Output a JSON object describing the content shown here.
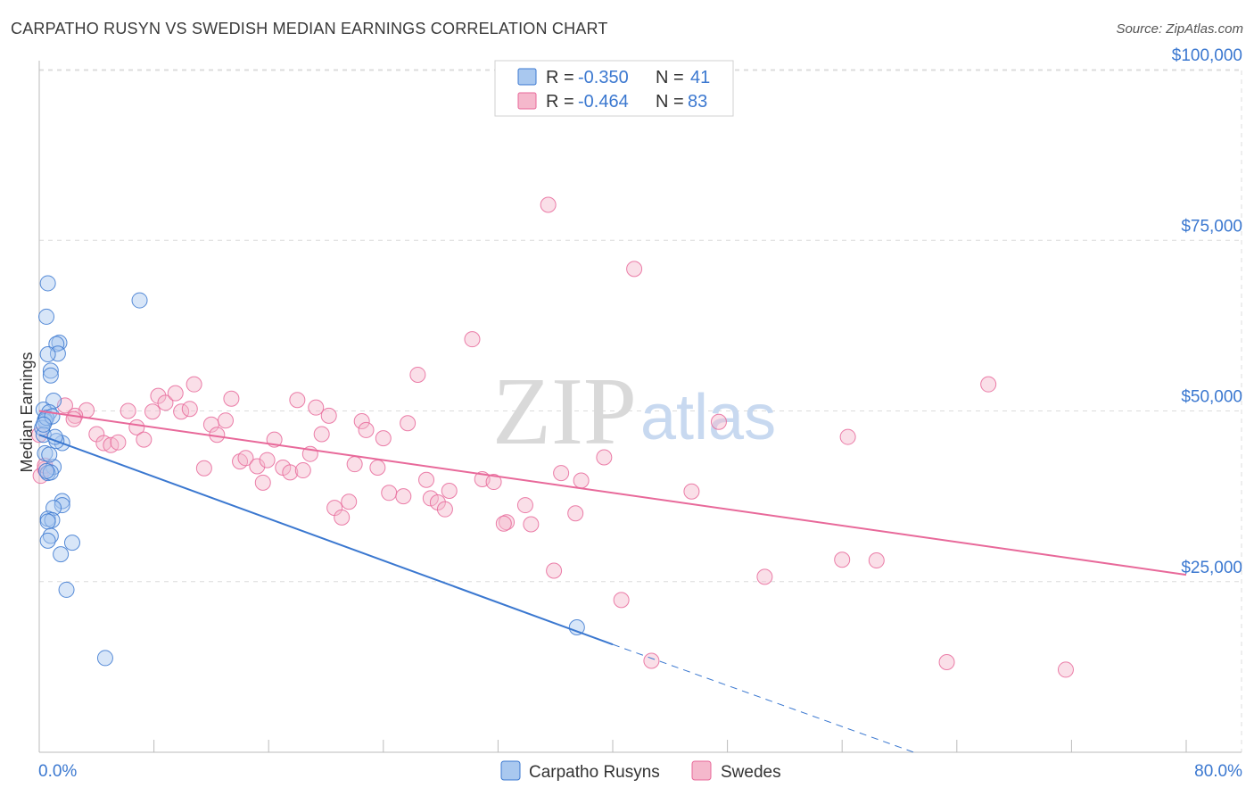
{
  "title": "CARPATHO RUSYN VS SWEDISH MEDIAN EARNINGS CORRELATION CHART",
  "source": "Source: ZipAtlas.com",
  "watermark": {
    "zip": "ZIP",
    "atlas": "atlas"
  },
  "colors": {
    "blue": "#3b78d0",
    "blue_fill": "#a9c8ef",
    "pink": "#e8699a",
    "pink_fill": "#f5b8cc"
  },
  "legend": {
    "rows": [
      {
        "r_label": "R =",
        "r_value": "-0.350",
        "n_label": "N =",
        "n_value": "41"
      },
      {
        "r_label": "R =",
        "r_value": "-0.464",
        "n_label": "N =",
        "n_value": "83"
      }
    ]
  },
  "bottom_legend": [
    "Carpatho Rusyns",
    "Swedes"
  ],
  "chart_data": {
    "type": "scatter",
    "xlabel": "",
    "ylabel": "Median Earnings",
    "xlim": [
      0,
      80
    ],
    "ylim": [
      0,
      105000
    ],
    "x_tick_labels": [
      "0.0%",
      "80.0%"
    ],
    "y_ticks": [
      {
        "value": 25000,
        "label": "$25,000"
      },
      {
        "value": 50000,
        "label": "$50,000"
      },
      {
        "value": 75000,
        "label": "$75,000"
      },
      {
        "value": 100000,
        "label": "$100,000"
      }
    ],
    "series": [
      {
        "name": "Carpatho Rusyns",
        "r": -0.35,
        "n": 41,
        "trend": {
          "x0": 0,
          "y0": 46500,
          "x1": 40,
          "y1": 15800,
          "dash_to_x": 61,
          "dash_to_y": 0
        },
        "points": [
          [
            0.6,
            68700
          ],
          [
            0.5,
            63800
          ],
          [
            1.4,
            60000
          ],
          [
            1.2,
            59800
          ],
          [
            1.3,
            58400
          ],
          [
            0.6,
            58300
          ],
          [
            0.8,
            55900
          ],
          [
            0.8,
            55200
          ],
          [
            1.0,
            51500
          ],
          [
            0.3,
            50200
          ],
          [
            0.7,
            49800
          ],
          [
            0.4,
            48700
          ],
          [
            0.4,
            48500
          ],
          [
            0.2,
            47500
          ],
          [
            0.3,
            46500
          ],
          [
            1.6,
            45300
          ],
          [
            1.2,
            45600
          ],
          [
            0.4,
            43800
          ],
          [
            1.0,
            41800
          ],
          [
            0.6,
            40900
          ],
          [
            0.8,
            41000
          ],
          [
            1.6,
            36800
          ],
          [
            1.6,
            36200
          ],
          [
            1.0,
            35800
          ],
          [
            0.6,
            34200
          ],
          [
            0.9,
            34000
          ],
          [
            0.6,
            33800
          ],
          [
            0.8,
            31700
          ],
          [
            0.6,
            31000
          ],
          [
            2.3,
            30700
          ],
          [
            1.5,
            29000
          ],
          [
            1.9,
            23800
          ],
          [
            7.0,
            66200
          ],
          [
            4.6,
            13800
          ],
          [
            37.5,
            18300
          ],
          [
            0.5,
            49000
          ],
          [
            0.9,
            49200
          ],
          [
            0.3,
            48000
          ],
          [
            1.1,
            46200
          ],
          [
            0.7,
            43600
          ],
          [
            0.5,
            41200
          ]
        ]
      },
      {
        "name": "Swedes",
        "r": -0.464,
        "n": 83,
        "trend": {
          "x0": 0,
          "y0": 50000,
          "x1": 80,
          "y1": 26000
        },
        "points": [
          [
            0.0,
            46500
          ],
          [
            0.1,
            40500
          ],
          [
            0.4,
            41500
          ],
          [
            1.8,
            50800
          ],
          [
            3.3,
            50100
          ],
          [
            2.5,
            49300
          ],
          [
            2.4,
            48800
          ],
          [
            4.0,
            46600
          ],
          [
            4.5,
            45300
          ],
          [
            5.0,
            45000
          ],
          [
            5.5,
            45400
          ],
          [
            6.2,
            50000
          ],
          [
            6.8,
            47600
          ],
          [
            7.3,
            45800
          ],
          [
            7.9,
            49900
          ],
          [
            8.3,
            52200
          ],
          [
            8.8,
            51200
          ],
          [
            9.5,
            52600
          ],
          [
            9.9,
            49900
          ],
          [
            10.5,
            50300
          ],
          [
            10.8,
            53900
          ],
          [
            11.5,
            41600
          ],
          [
            12.0,
            48000
          ],
          [
            12.4,
            46500
          ],
          [
            13.0,
            48600
          ],
          [
            13.4,
            51800
          ],
          [
            14.0,
            42600
          ],
          [
            14.4,
            43100
          ],
          [
            15.2,
            41900
          ],
          [
            15.6,
            39500
          ],
          [
            15.9,
            42800
          ],
          [
            16.4,
            45800
          ],
          [
            17.0,
            41700
          ],
          [
            17.5,
            41000
          ],
          [
            18.0,
            51600
          ],
          [
            18.4,
            41300
          ],
          [
            18.9,
            43700
          ],
          [
            19.3,
            50500
          ],
          [
            19.7,
            46600
          ],
          [
            20.2,
            49300
          ],
          [
            20.6,
            35800
          ],
          [
            21.1,
            34400
          ],
          [
            21.6,
            36700
          ],
          [
            22.0,
            42200
          ],
          [
            22.5,
            48500
          ],
          [
            22.8,
            47200
          ],
          [
            23.6,
            41700
          ],
          [
            24.0,
            46000
          ],
          [
            24.4,
            38000
          ],
          [
            25.4,
            37500
          ],
          [
            25.7,
            48200
          ],
          [
            26.4,
            55300
          ],
          [
            27.0,
            39900
          ],
          [
            27.3,
            37200
          ],
          [
            27.8,
            36600
          ],
          [
            28.3,
            35600
          ],
          [
            28.6,
            38300
          ],
          [
            30.2,
            60500
          ],
          [
            30.9,
            40000
          ],
          [
            31.7,
            39600
          ],
          [
            32.6,
            33700
          ],
          [
            32.4,
            33500
          ],
          [
            33.9,
            36200
          ],
          [
            34.3,
            33400
          ],
          [
            35.5,
            80200
          ],
          [
            35.9,
            26600
          ],
          [
            36.4,
            40900
          ],
          [
            37.4,
            35000
          ],
          [
            37.8,
            39800
          ],
          [
            39.4,
            43200
          ],
          [
            40.6,
            22300
          ],
          [
            41.5,
            70800
          ],
          [
            42.7,
            13400
          ],
          [
            45.5,
            38200
          ],
          [
            47.4,
            48400
          ],
          [
            50.6,
            25700
          ],
          [
            56.4,
            46200
          ],
          [
            56.0,
            28200
          ],
          [
            58.4,
            28100
          ],
          [
            63.3,
            13200
          ],
          [
            66.2,
            53900
          ],
          [
            71.6,
            12100
          ],
          [
            0.4,
            42000
          ]
        ]
      }
    ]
  }
}
